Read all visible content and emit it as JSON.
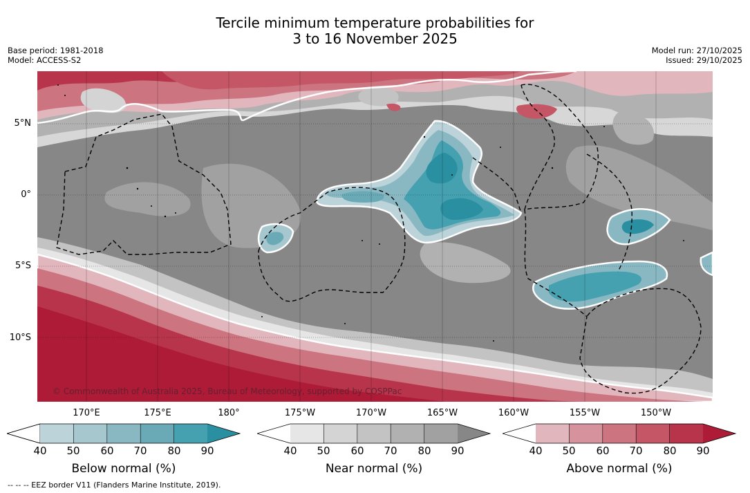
{
  "title_line1": "Tercile minimum temperature probabilities for",
  "title_line2": "3 to 16 November 2025",
  "base_period": "Base period: 1981-2018",
  "model": "Model: ACCESS-S2",
  "model_run": "Model run: 27/10/2025",
  "issued": "Issued: 29/10/2025",
  "lat_labels": [
    "5°N",
    "0°",
    "5°S",
    "10°S"
  ],
  "lon_labels": [
    "170°E",
    "175°E",
    "180°",
    "175°W",
    "170°W",
    "165°W",
    "160°W",
    "155°W",
    "150°W"
  ],
  "copyright": "© Commonwealth of Australia 2025, Bureau of Meteorology, supported by COSPPac",
  "colorbars": [
    {
      "label": "Below normal (%)",
      "ticks": [
        "40",
        "50",
        "60",
        "70",
        "80",
        "90"
      ],
      "colors": [
        "#ffffff",
        "#bcd3da",
        "#a6c7ce",
        "#89b8c2",
        "#6aaab6",
        "#45a0b0",
        "#2a8fa1"
      ]
    },
    {
      "label": "Near normal (%)",
      "ticks": [
        "40",
        "50",
        "60",
        "70",
        "80",
        "90"
      ],
      "colors": [
        "#ffffff",
        "#e6e6e6",
        "#d4d4d4",
        "#c3c3c3",
        "#b1b1b1",
        "#a1a1a1",
        "#878787"
      ]
    },
    {
      "label": "Above normal (%)",
      "ticks": [
        "40",
        "50",
        "60",
        "70",
        "80",
        "90"
      ],
      "colors": [
        "#ffffff",
        "#e2b6bd",
        "#d6939d",
        "#cc7480",
        "#c45665",
        "#b8344b",
        "#ad1b37"
      ]
    }
  ],
  "footer": "--  --  -- EEZ border V11 (Flanders Marine Institute, 2019)."
}
